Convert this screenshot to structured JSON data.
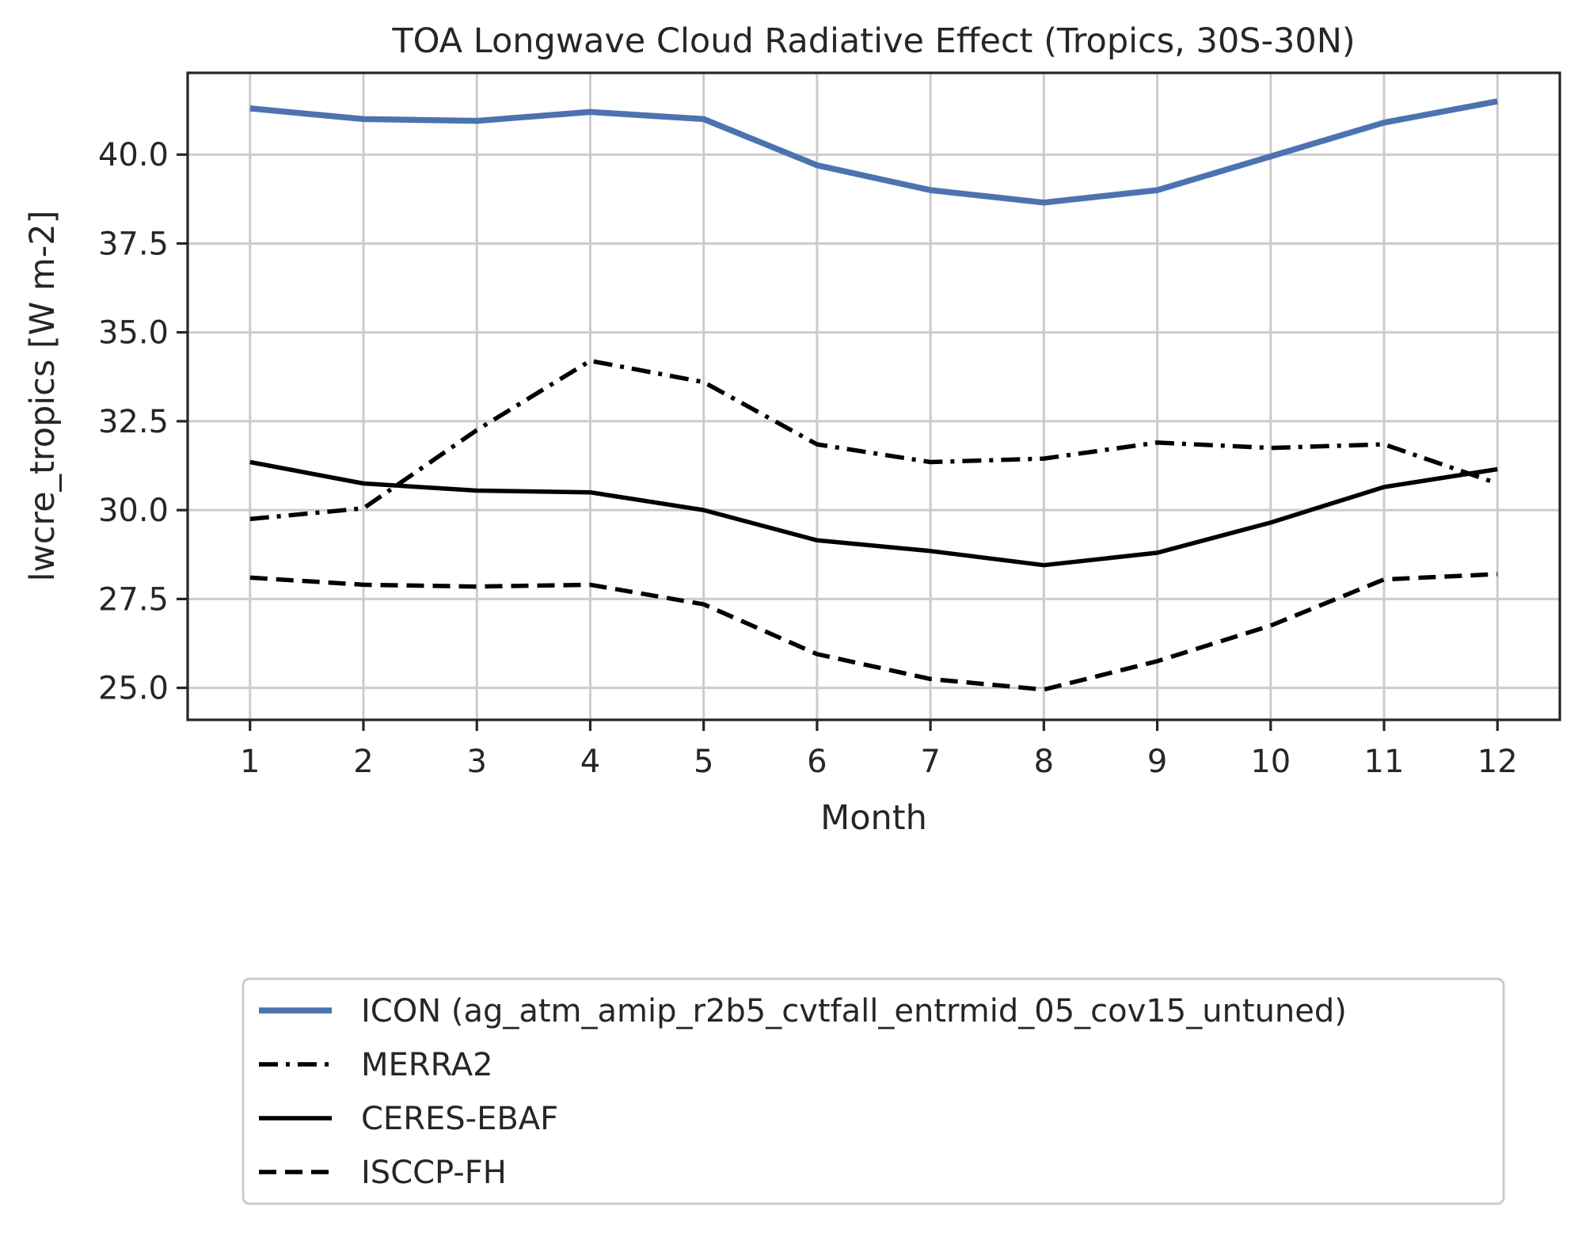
{
  "chart_data": {
    "type": "line",
    "title": "TOA Longwave Cloud Radiative Effect (Tropics, 30S-30N)",
    "xlabel": "Month",
    "ylabel": "lwcre_tropics [W m-2]",
    "x": [
      1,
      2,
      3,
      4,
      5,
      6,
      7,
      8,
      9,
      10,
      11,
      12
    ],
    "x_tick_labels": [
      "1",
      "2",
      "3",
      "4",
      "5",
      "6",
      "7",
      "8",
      "9",
      "10",
      "11",
      "12"
    ],
    "y_ticks": [
      25.0,
      27.5,
      30.0,
      32.5,
      35.0,
      37.5,
      40.0
    ],
    "y_tick_labels": [
      "25.0",
      "27.5",
      "30.0",
      "32.5",
      "35.0",
      "37.5",
      "40.0"
    ],
    "xlim": [
      0.45,
      12.55
    ],
    "ylim": [
      24.1,
      42.3
    ],
    "grid": true,
    "legend_position": "below plot",
    "series": [
      {
        "name": "ICON (ag_atm_amip_r2b5_cvtfall_entrmid_05_cov15_untuned)",
        "color": "#4c72b0",
        "dash": "solid",
        "width": "thick",
        "values": [
          41.3,
          41.0,
          40.95,
          41.2,
          41.0,
          39.7,
          39.0,
          38.65,
          39.0,
          39.95,
          40.9,
          41.5
        ]
      },
      {
        "name": "MERRA2",
        "color": "#000000",
        "dash": "dashdot",
        "width": "normal",
        "values": [
          29.75,
          30.05,
          32.25,
          34.2,
          33.6,
          31.85,
          31.35,
          31.45,
          31.9,
          31.75,
          31.85,
          30.75
        ]
      },
      {
        "name": "CERES-EBAF",
        "color": "#000000",
        "dash": "solid",
        "width": "normal",
        "values": [
          31.35,
          30.75,
          30.55,
          30.5,
          30.0,
          29.15,
          28.85,
          28.45,
          28.8,
          29.65,
          30.65,
          31.15
        ]
      },
      {
        "name": "ISCCP-FH",
        "color": "#000000",
        "dash": "dashed",
        "width": "normal",
        "values": [
          28.1,
          27.9,
          27.85,
          27.9,
          27.35,
          25.95,
          25.25,
          24.95,
          25.75,
          26.75,
          28.05,
          28.2
        ]
      }
    ]
  }
}
